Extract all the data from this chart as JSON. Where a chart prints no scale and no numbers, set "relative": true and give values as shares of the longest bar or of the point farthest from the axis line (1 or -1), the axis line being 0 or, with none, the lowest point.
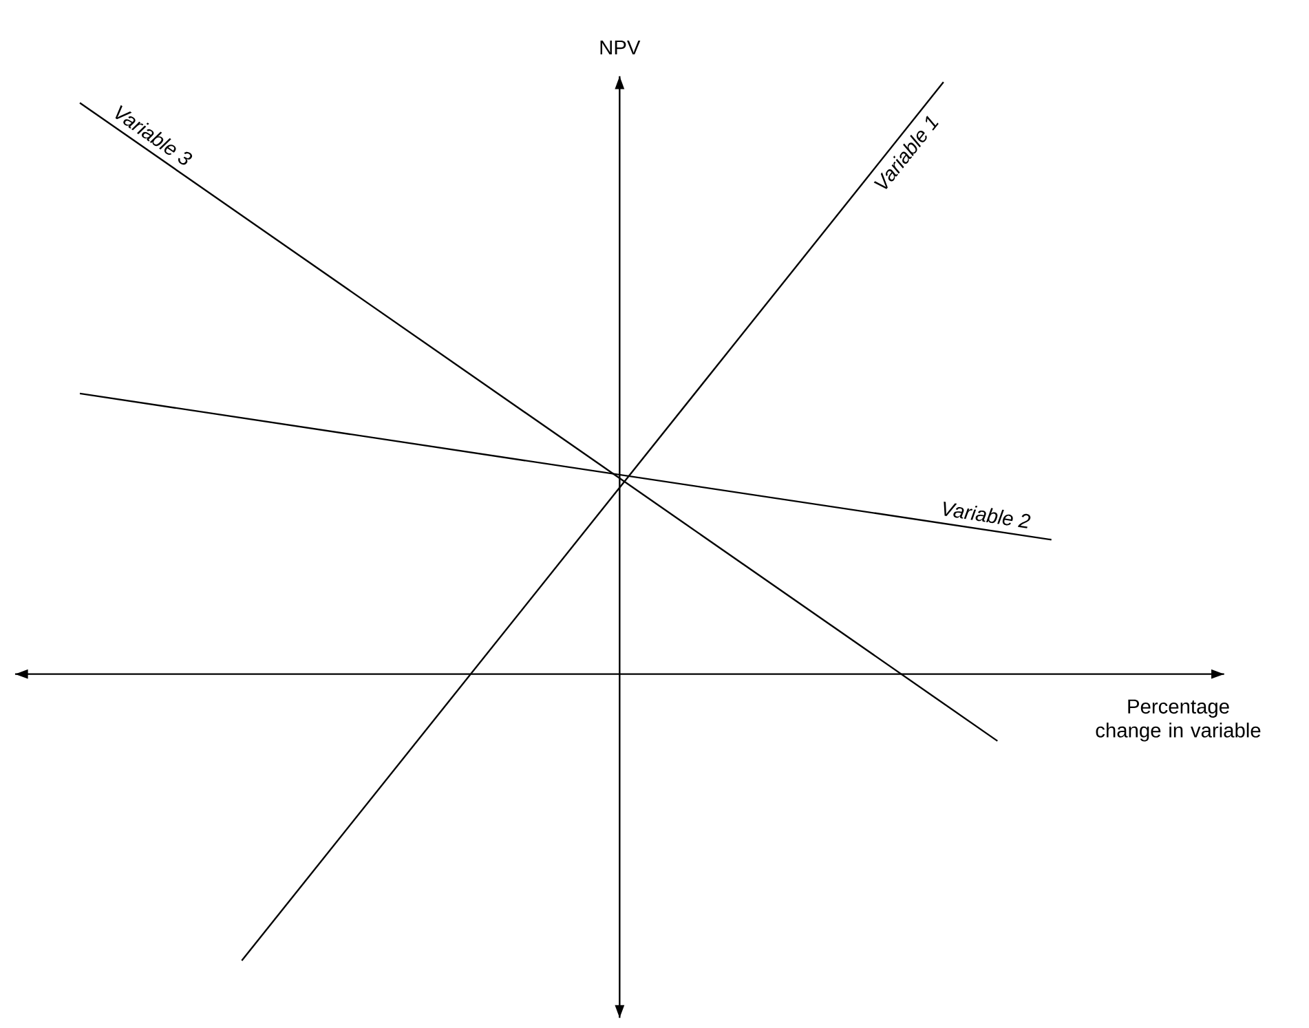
{
  "chart_data": {
    "type": "line",
    "relative": true,
    "xlabel": "Percentage change in variable",
    "ylabel": "NPV",
    "marker": "none",
    "line_style": "solid",
    "categories": [
      null,
      null,
      null,
      null,
      null,
      null,
      null,
      null,
      null,
      null,
      null,
      null,
      null,
      null,
      null,
      null,
      null,
      null,
      null,
      null,
      null
    ],
    "series": [
      {
        "name": "Variable 1",
        "color": "#000000",
        "values": [
          null,
          null,
          null,
          -0.484,
          null,
          null,
          null,
          null,
          null,
          null,
          null,
          null,
          null,
          null,
          null,
          null,
          1,
          null,
          null,
          null,
          null
        ]
      },
      {
        "name": "Variable 2",
        "color": "#000000",
        "values": [
          0.474,
          null,
          null,
          null,
          null,
          null,
          null,
          null,
          null,
          null,
          null,
          null,
          null,
          null,
          null,
          null,
          null,
          null,
          0.227,
          null,
          null
        ]
      },
      {
        "name": "Variable 3",
        "color": "#000000",
        "values": [
          0.965,
          null,
          null,
          null,
          null,
          null,
          null,
          null,
          null,
          null,
          null,
          null,
          null,
          null,
          null,
          null,
          null,
          -0.113,
          null,
          null,
          null
        ]
      }
    ]
  }
}
